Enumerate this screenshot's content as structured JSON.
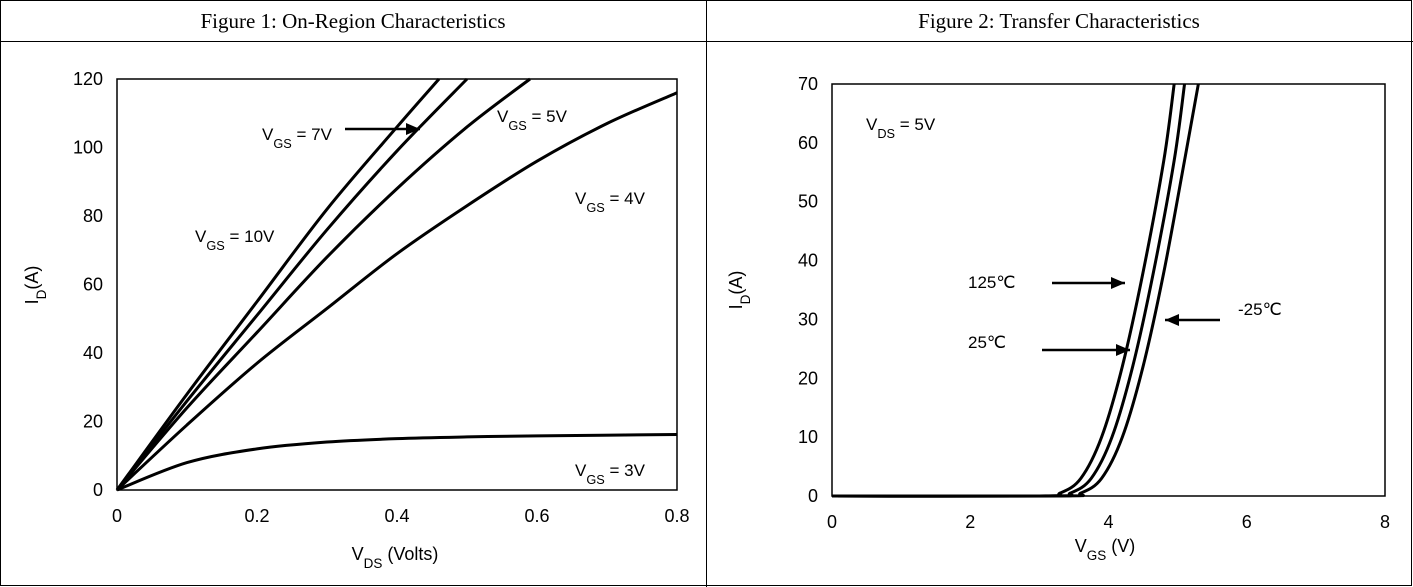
{
  "chart_data": [
    {
      "type": "line",
      "title": "Figure 1: On-Region Characteristics",
      "x_label": "VDS (Volts)",
      "y_label": "ID(A)",
      "color": "#000000",
      "xlim": [
        0,
        0.8
      ],
      "ylim": [
        0,
        120
      ],
      "xticks": [
        0,
        0.2,
        0.4,
        0.6,
        0.8
      ],
      "yticks": [
        0,
        20,
        40,
        60,
        80,
        100,
        120
      ],
      "series": [
        {
          "name": "VGS = 10V",
          "x": [
            0,
            0.1,
            0.2,
            0.3,
            0.4,
            0.46
          ],
          "values": [
            0,
            28,
            55,
            82,
            106,
            120
          ]
        },
        {
          "name": "VGS = 7V",
          "x": [
            0,
            0.1,
            0.2,
            0.3,
            0.4,
            0.5
          ],
          "values": [
            0,
            26,
            51,
            76,
            99,
            120
          ]
        },
        {
          "name": "VGS = 5V",
          "x": [
            0,
            0.1,
            0.2,
            0.3,
            0.4,
            0.5,
            0.59
          ],
          "values": [
            0,
            24,
            46,
            68,
            88,
            106,
            120
          ]
        },
        {
          "name": "VGS = 4V",
          "x": [
            0,
            0.1,
            0.2,
            0.3,
            0.4,
            0.5,
            0.6,
            0.7,
            0.8
          ],
          "values": [
            0,
            19,
            37,
            53,
            69,
            83,
            96,
            107,
            116
          ]
        },
        {
          "name": "VGS = 3V",
          "x": [
            0,
            0.1,
            0.2,
            0.3,
            0.4,
            0.5,
            0.6,
            0.8
          ],
          "values": [
            0,
            8,
            12,
            14,
            15,
            15.5,
            15.8,
            16.2
          ]
        }
      ]
    },
    {
      "type": "line",
      "title": "Figure 2: Transfer Characteristics",
      "x_label": "VGS (V)",
      "y_label": "ID(A)",
      "annotation": "VDS = 5V",
      "color": "#000000",
      "xlim": [
        0,
        8
      ],
      "ylim": [
        0,
        70
      ],
      "xticks": [
        0,
        2,
        4,
        6,
        8
      ],
      "yticks": [
        0,
        10,
        20,
        30,
        40,
        50,
        60,
        70
      ],
      "series": [
        {
          "name": "125℃",
          "x": [
            0,
            3,
            3.3,
            3.6,
            3.9,
            4.2,
            4.5,
            4.8,
            4.95
          ],
          "values": [
            0,
            0,
            0.5,
            3,
            10,
            22,
            38,
            57,
            70
          ]
        },
        {
          "name": "25℃",
          "x": [
            0,
            3.15,
            3.45,
            3.75,
            4.05,
            4.35,
            4.65,
            4.95,
            5.1
          ],
          "values": [
            0,
            0,
            0.5,
            3,
            10,
            22,
            38,
            57,
            70
          ]
        },
        {
          "name": "-25℃",
          "x": [
            0,
            3.3,
            3.6,
            3.9,
            4.2,
            4.5,
            4.8,
            5.1,
            5.3
          ],
          "values": [
            0,
            0,
            0.5,
            3,
            10,
            22,
            38,
            57,
            70
          ]
        }
      ]
    }
  ]
}
